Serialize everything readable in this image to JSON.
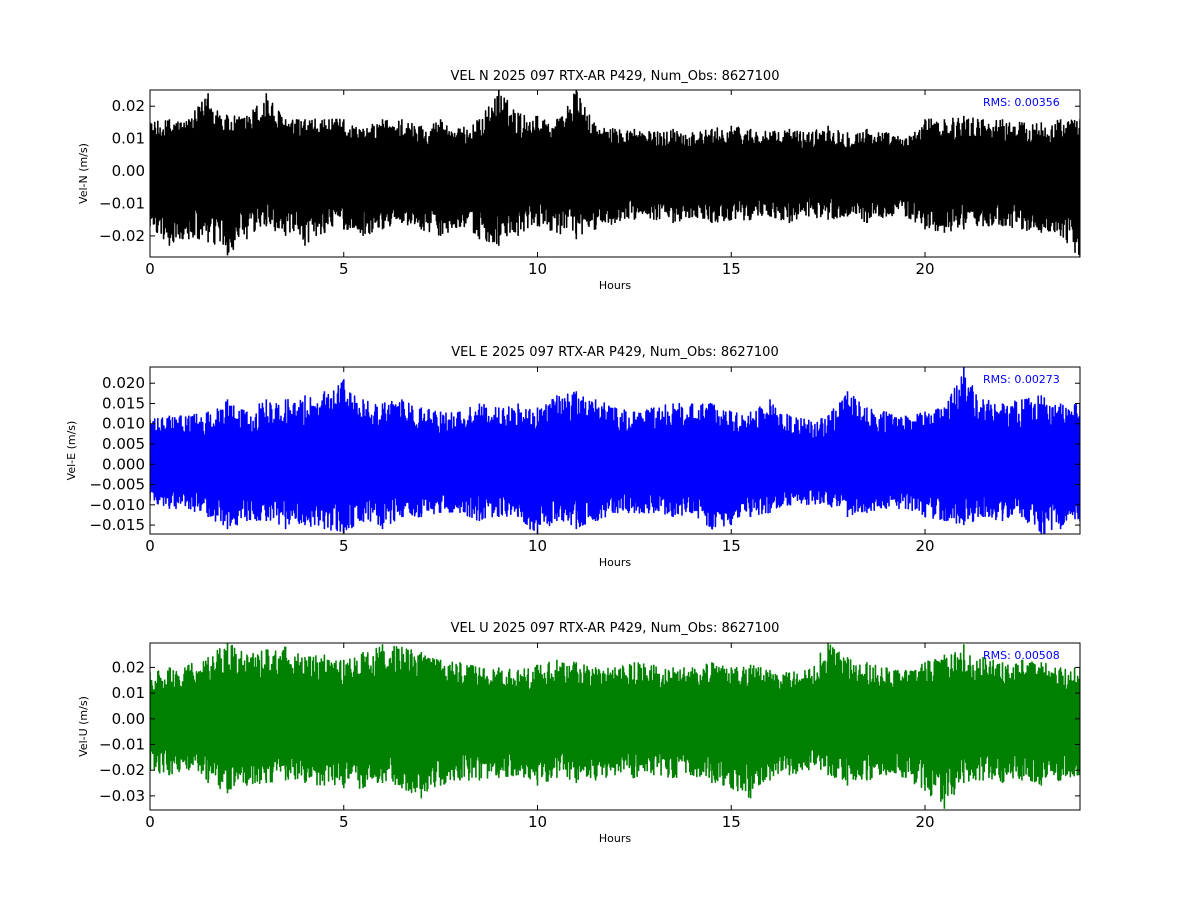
{
  "chart_data": [
    {
      "type": "line",
      "title": "VEL N 2025 097 RTX-AR  P429, Num_Obs: 8627100",
      "xlabel": "Hours",
      "ylabel": "Vel-N (m/s)",
      "xlim": [
        0,
        24
      ],
      "ylim": [
        -0.0265,
        0.025
      ],
      "xticks": [
        0,
        5,
        10,
        15,
        20
      ],
      "xtick_labels": [
        "0",
        "5",
        "10",
        "15",
        "20"
      ],
      "yticks": [
        -0.02,
        -0.01,
        0.0,
        0.01,
        0.02
      ],
      "ytick_labels": [
        "−0.02",
        "−0.01",
        "0.00",
        "0.01",
        "0.02"
      ],
      "annotation": "RMS:  0.00356",
      "annotation_color": "#0000ff",
      "color": "#000000",
      "grid": false,
      "series": [
        {
          "x": [
            0,
            0.5,
            1,
            1.5,
            2,
            2.5,
            3,
            3.5,
            4,
            4.5,
            5,
            5.5,
            6,
            6.5,
            7,
            7.5,
            8,
            8.5,
            9,
            9.5,
            10,
            10.5,
            11,
            11.5,
            12,
            12.5,
            13,
            13.5,
            14,
            14.5,
            15,
            15.5,
            16,
            16.5,
            17,
            17.5,
            18,
            18.5,
            19,
            19.5,
            20,
            20.5,
            21,
            21.5,
            22,
            22.5,
            23,
            23.5,
            24
          ],
          "y_max": [
            0.015,
            0.016,
            0.016,
            0.024,
            0.017,
            0.017,
            0.024,
            0.016,
            0.016,
            0.016,
            0.016,
            0.013,
            0.016,
            0.016,
            0.014,
            0.016,
            0.013,
            0.016,
            0.025,
            0.018,
            0.017,
            0.016,
            0.025,
            0.014,
            0.013,
            0.013,
            0.012,
            0.013,
            0.012,
            0.013,
            0.014,
            0.013,
            0.012,
            0.013,
            0.012,
            0.014,
            0.012,
            0.013,
            0.012,
            0.01,
            0.016,
            0.016,
            0.017,
            0.016,
            0.016,
            0.015,
            0.015,
            0.016,
            0.016
          ],
          "y_min": [
            -0.017,
            -0.023,
            -0.021,
            -0.022,
            -0.026,
            -0.021,
            -0.017,
            -0.02,
            -0.023,
            -0.019,
            -0.018,
            -0.02,
            -0.018,
            -0.016,
            -0.018,
            -0.02,
            -0.017,
            -0.021,
            -0.023,
            -0.02,
            -0.017,
            -0.019,
            -0.021,
            -0.018,
            -0.016,
            -0.015,
            -0.015,
            -0.016,
            -0.014,
            -0.016,
            -0.015,
            -0.015,
            -0.014,
            -0.016,
            -0.014,
            -0.015,
            -0.014,
            -0.016,
            -0.014,
            -0.014,
            -0.018,
            -0.019,
            -0.018,
            -0.017,
            -0.017,
            -0.018,
            -0.019,
            -0.02,
            -0.027
          ]
        }
      ]
    },
    {
      "type": "line",
      "title": "VEL E 2025 097 RTX-AR  P429, Num_Obs: 8627100",
      "xlabel": "Hours",
      "ylabel": "Vel-E (m/s)",
      "xlim": [
        0,
        24
      ],
      "ylim": [
        -0.0172,
        0.024
      ],
      "xticks": [
        0,
        5,
        10,
        15,
        20
      ],
      "xtick_labels": [
        "0",
        "5",
        "10",
        "15",
        "20"
      ],
      "yticks": [
        -0.015,
        -0.01,
        -0.005,
        0.0,
        0.005,
        0.01,
        0.015,
        0.02
      ],
      "ytick_labels": [
        "−0.015",
        "−0.010",
        "−0.005",
        "0.000",
        "0.005",
        "0.010",
        "0.015",
        "0.020"
      ],
      "annotation": "RMS:  0.00273",
      "annotation_color": "#0000ff",
      "color": "#0000ff",
      "grid": false,
      "series": [
        {
          "x": [
            0,
            0.5,
            1,
            1.5,
            2,
            2.5,
            3,
            3.5,
            4,
            4.5,
            5,
            5.5,
            6,
            6.5,
            7,
            7.5,
            8,
            8.5,
            9,
            9.5,
            10,
            10.5,
            11,
            11.5,
            12,
            12.5,
            13,
            13.5,
            14,
            14.5,
            15,
            15.5,
            16,
            16.5,
            17,
            17.5,
            18,
            18.5,
            19,
            19.5,
            20,
            20.5,
            21,
            21.5,
            22,
            22.5,
            23,
            23.5,
            24
          ],
          "y_max": [
            0.011,
            0.012,
            0.012,
            0.013,
            0.016,
            0.013,
            0.016,
            0.016,
            0.017,
            0.018,
            0.021,
            0.016,
            0.015,
            0.016,
            0.014,
            0.013,
            0.013,
            0.015,
            0.014,
            0.015,
            0.014,
            0.017,
            0.018,
            0.016,
            0.014,
            0.013,
            0.014,
            0.015,
            0.015,
            0.015,
            0.013,
            0.013,
            0.016,
            0.012,
            0.011,
            0.012,
            0.018,
            0.014,
            0.013,
            0.012,
            0.013,
            0.014,
            0.024,
            0.016,
            0.015,
            0.016,
            0.017,
            0.015,
            0.015
          ],
          "y_min": [
            -0.009,
            -0.011,
            -0.011,
            -0.013,
            -0.016,
            -0.014,
            -0.014,
            -0.016,
            -0.015,
            -0.016,
            -0.017,
            -0.014,
            -0.016,
            -0.013,
            -0.013,
            -0.012,
            -0.012,
            -0.014,
            -0.013,
            -0.013,
            -0.018,
            -0.014,
            -0.016,
            -0.014,
            -0.012,
            -0.012,
            -0.012,
            -0.013,
            -0.012,
            -0.016,
            -0.015,
            -0.013,
            -0.012,
            -0.01,
            -0.01,
            -0.01,
            -0.013,
            -0.012,
            -0.011,
            -0.011,
            -0.013,
            -0.014,
            -0.015,
            -0.013,
            -0.014,
            -0.013,
            -0.018,
            -0.016,
            -0.014
          ]
        }
      ]
    },
    {
      "type": "line",
      "title": "VEL U 2025 097 RTX-AR  P429, Num_Obs: 8627100",
      "xlabel": "Hours",
      "ylabel": "Vel-U (m/s)",
      "xlim": [
        0,
        24
      ],
      "ylim": [
        -0.0355,
        0.0295
      ],
      "xticks": [
        0,
        5,
        10,
        15,
        20
      ],
      "xtick_labels": [
        "0",
        "5",
        "10",
        "15",
        "20"
      ],
      "yticks": [
        -0.03,
        -0.02,
        -0.01,
        0.0,
        0.01,
        0.02
      ],
      "ytick_labels": [
        "−0.03",
        "−0.02",
        "−0.01",
        "0.00",
        "0.01",
        "0.02"
      ],
      "annotation": "RMS:  0.00508",
      "annotation_color": "#0000ff",
      "color": "#008000",
      "grid": false,
      "series": [
        {
          "x": [
            0,
            0.5,
            1,
            1.5,
            2,
            2.5,
            3,
            3.5,
            4,
            4.5,
            5,
            5.5,
            6,
            6.5,
            7,
            7.5,
            8,
            8.5,
            9,
            9.5,
            10,
            10.5,
            11,
            11.5,
            12,
            12.5,
            13,
            13.5,
            14,
            14.5,
            15,
            15.5,
            16,
            16.5,
            17,
            17.5,
            18,
            18.5,
            19,
            19.5,
            20,
            20.5,
            21,
            21.5,
            22,
            22.5,
            23,
            23.5,
            24
          ],
          "y_max": [
            0.018,
            0.02,
            0.021,
            0.024,
            0.03,
            0.025,
            0.027,
            0.028,
            0.024,
            0.025,
            0.023,
            0.026,
            0.029,
            0.028,
            0.026,
            0.023,
            0.022,
            0.02,
            0.02,
            0.019,
            0.021,
            0.023,
            0.022,
            0.02,
            0.02,
            0.022,
            0.021,
            0.02,
            0.02,
            0.022,
            0.02,
            0.021,
            0.019,
            0.018,
            0.019,
            0.03,
            0.024,
            0.022,
            0.02,
            0.019,
            0.022,
            0.025,
            0.029,
            0.024,
            0.022,
            0.023,
            0.022,
            0.02,
            0.02
          ],
          "y_min": [
            -0.02,
            -0.022,
            -0.02,
            -0.025,
            -0.029,
            -0.026,
            -0.025,
            -0.024,
            -0.025,
            -0.026,
            -0.027,
            -0.027,
            -0.025,
            -0.027,
            -0.031,
            -0.026,
            -0.024,
            -0.024,
            -0.023,
            -0.022,
            -0.026,
            -0.023,
            -0.025,
            -0.024,
            -0.022,
            -0.023,
            -0.022,
            -0.023,
            -0.022,
            -0.025,
            -0.027,
            -0.031,
            -0.024,
            -0.022,
            -0.02,
            -0.022,
            -0.026,
            -0.024,
            -0.022,
            -0.023,
            -0.028,
            -0.035,
            -0.025,
            -0.024,
            -0.025,
            -0.024,
            -0.026,
            -0.024,
            -0.022
          ]
        }
      ]
    }
  ]
}
